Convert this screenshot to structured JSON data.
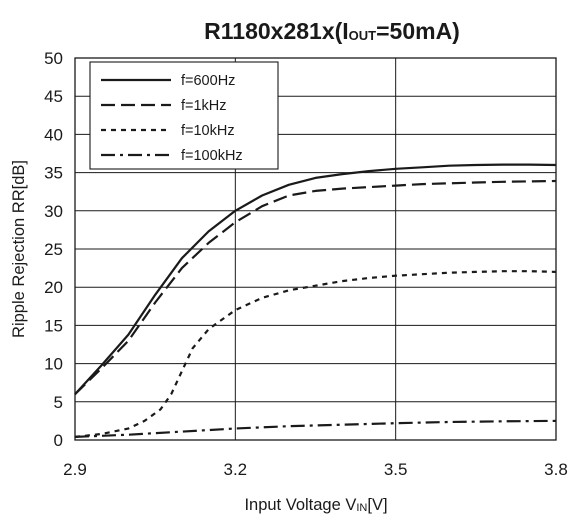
{
  "chart_data": {
    "type": "line",
    "title": "R1180x281x(I",
    "title_sub": "OUT",
    "title_tail": "=50mA)",
    "xlabel": "Input Voltage V",
    "xlabel_sub": "IN",
    "xlabel_tail": "[V]",
    "ylabel": "Ripple Rejection RR[dB]",
    "xlim": [
      2.9,
      3.8
    ],
    "ylim": [
      0,
      50
    ],
    "x_ticks": [
      "2.9",
      "3.2",
      "3.5",
      "3.8"
    ],
    "x_tick_values": [
      2.9,
      3.2,
      3.5,
      3.8
    ],
    "y_ticks": [
      "0",
      "5",
      "10",
      "15",
      "20",
      "25",
      "30",
      "35",
      "40",
      "45",
      "50"
    ],
    "y_tick_values": [
      0,
      5,
      10,
      15,
      20,
      25,
      30,
      35,
      40,
      45,
      50
    ],
    "x_grid": [
      3.2,
      3.5
    ],
    "legend_position": "top-left",
    "series": [
      {
        "name": "f=600Hz",
        "dash": "solid",
        "x": [
          2.9,
          2.95,
          3.0,
          3.05,
          3.1,
          3.15,
          3.2,
          3.25,
          3.3,
          3.35,
          3.4,
          3.45,
          3.5,
          3.55,
          3.6,
          3.65,
          3.7,
          3.75,
          3.8
        ],
        "y": [
          6.0,
          9.8,
          13.8,
          19.0,
          23.8,
          27.3,
          30.0,
          32.0,
          33.4,
          34.3,
          34.8,
          35.2,
          35.5,
          35.7,
          35.9,
          36.0,
          36.05,
          36.05,
          36.0
        ]
      },
      {
        "name": "f=1kHz",
        "dash": "long-dash",
        "x": [
          2.9,
          2.95,
          3.0,
          3.05,
          3.1,
          3.15,
          3.2,
          3.25,
          3.3,
          3.35,
          3.4,
          3.45,
          3.5,
          3.55,
          3.6,
          3.65,
          3.7,
          3.75,
          3.8
        ],
        "y": [
          6.0,
          9.4,
          13.0,
          18.0,
          22.5,
          25.8,
          28.5,
          30.6,
          32.0,
          32.6,
          32.9,
          33.1,
          33.3,
          33.5,
          33.6,
          33.7,
          33.8,
          33.85,
          33.9
        ]
      },
      {
        "name": "f=10kHz",
        "dash": "short-dash",
        "x": [
          2.9,
          2.95,
          3.0,
          3.03,
          3.06,
          3.08,
          3.1,
          3.12,
          3.15,
          3.2,
          3.25,
          3.3,
          3.35,
          3.4,
          3.45,
          3.5,
          3.55,
          3.6,
          3.65,
          3.7,
          3.75,
          3.8
        ],
        "y": [
          0.4,
          0.8,
          1.5,
          2.5,
          4.0,
          6.0,
          9.0,
          12.0,
          14.5,
          17.0,
          18.6,
          19.6,
          20.2,
          20.8,
          21.2,
          21.5,
          21.7,
          21.9,
          22.0,
          22.1,
          22.1,
          22.0
        ]
      },
      {
        "name": "f=100kHz",
        "dash": "dash-dot",
        "x": [
          2.9,
          3.0,
          3.1,
          3.2,
          3.3,
          3.4,
          3.5,
          3.6,
          3.7,
          3.8
        ],
        "y": [
          0.4,
          0.7,
          1.1,
          1.5,
          1.8,
          2.0,
          2.2,
          2.35,
          2.45,
          2.5
        ]
      }
    ]
  }
}
